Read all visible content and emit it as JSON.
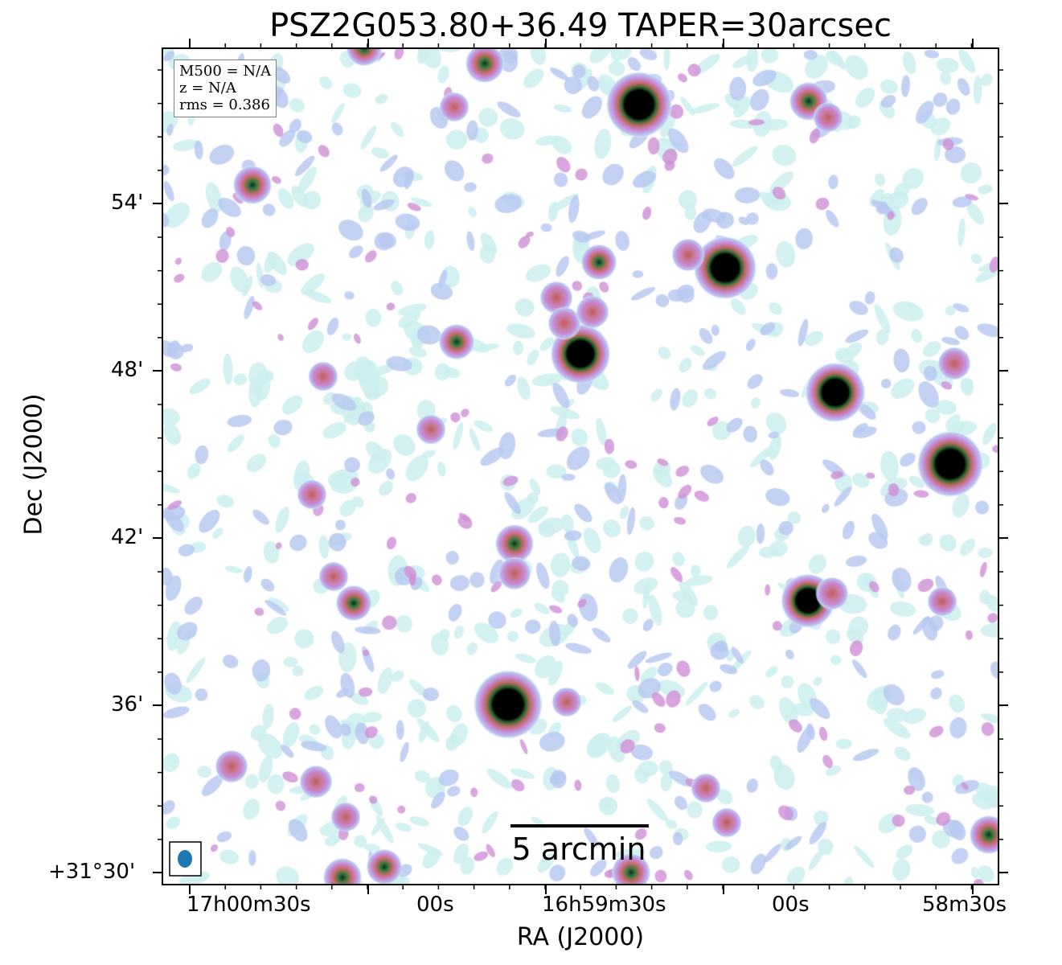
{
  "title": "PSZ2G053.80+36.49 TAPER=30arcsec",
  "xlabel": "RA (J2000)",
  "ylabel": "Dec (J2000)",
  "x_ticks": [
    {
      "label": "17h00m30s",
      "ra_sec_offset": 30
    },
    {
      "label": "00s",
      "ra_sec_offset": 0
    },
    {
      "label": "16h59m30s",
      "ra_sec_offset": -30
    },
    {
      "label": "00s",
      "ra_sec_offset": -60
    },
    {
      "label": "58m30s",
      "ra_sec_offset": -90
    }
  ],
  "y_ticks": [
    {
      "label": "54'",
      "dec_arcmin": 54
    },
    {
      "label": "48'",
      "dec_arcmin": 48
    },
    {
      "label": "42'",
      "dec_arcmin": 42
    },
    {
      "label": "36'",
      "dec_arcmin": 36
    },
    {
      "label": "+31°30'",
      "dec_arcmin": 30
    }
  ],
  "info": {
    "mass": "M500 = N/A",
    "redshift": "z = N/A",
    "rms": "rms = 0.386"
  },
  "scalebar_label": "5 arcmin",
  "colormap": [
    "#c8ecec",
    "#b5c8f0",
    "#c98ad8",
    "#c56a6a",
    "#3f7a3a",
    "#000000"
  ]
}
